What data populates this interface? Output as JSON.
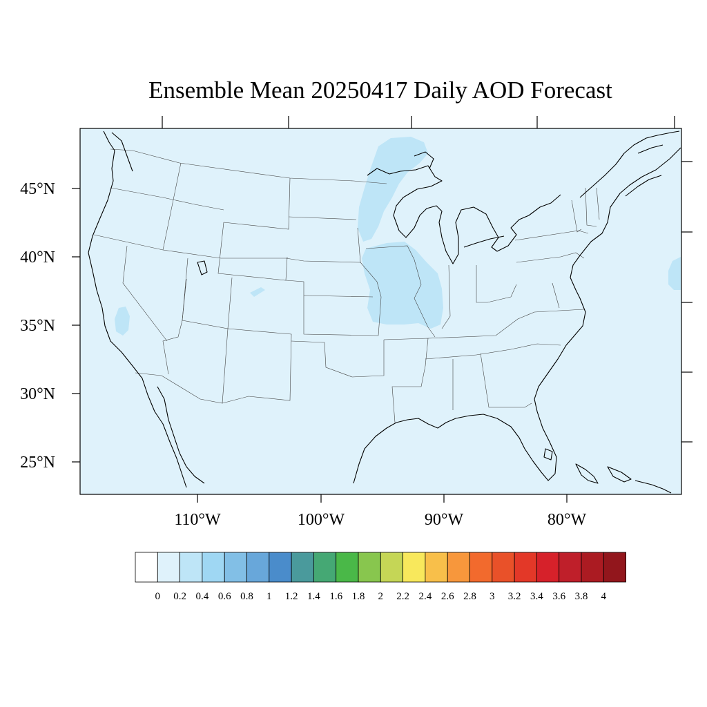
{
  "title": "Ensemble Mean 20250417 Daily AOD Forecast",
  "map": {
    "background_color": "#dff2fb",
    "lat_labels": [
      "45°N",
      "40°N",
      "35°N",
      "30°N",
      "25°N"
    ],
    "lon_labels": [
      "110°W",
      "100°W",
      "90°W",
      "80°W"
    ]
  },
  "colorbar": {
    "labels": [
      "0",
      "0.2",
      "0.4",
      "0.6",
      "0.8",
      "1",
      "1.2",
      "1.4",
      "1.6",
      "1.8",
      "2",
      "2.2",
      "2.4",
      "2.6",
      "2.8",
      "3",
      "3.2",
      "3.4",
      "3.6",
      "3.8",
      "4"
    ],
    "colors": [
      "#ffffff",
      "#dff2fb",
      "#bee5f7",
      "#9fd7f3",
      "#82bfe6",
      "#68a7da",
      "#4a8ccb",
      "#4a9a9c",
      "#45a874",
      "#4ab848",
      "#88c64e",
      "#c5d656",
      "#f8e85c",
      "#f8bf4a",
      "#f7973c",
      "#f26a2d",
      "#e95129",
      "#e33828",
      "#d6212a",
      "#bf1f2a",
      "#ab1b22",
      "#92161c"
    ]
  }
}
